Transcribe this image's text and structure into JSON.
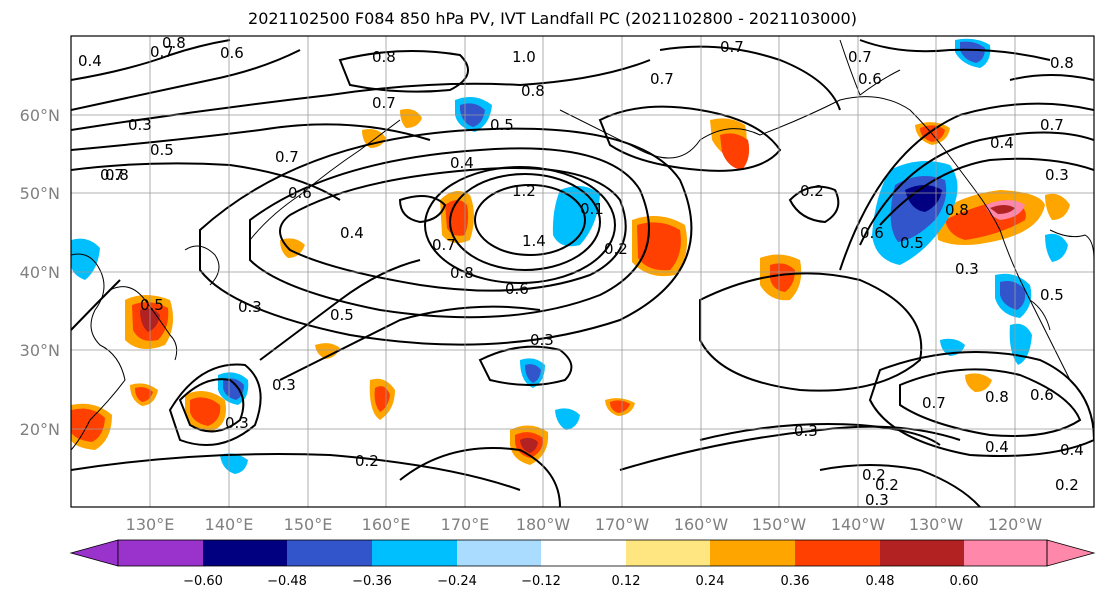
{
  "title": "2021102500 F084 850 hPa PV, IVT Landfall PC (2021102800 - 2021103000)",
  "lon_labels": [
    "130°E",
    "140°E",
    "150°E",
    "160°E",
    "170°E",
    "180°W",
    "170°W",
    "160°W",
    "150°W",
    "140°W",
    "130°W",
    "120°W"
  ],
  "lat_labels": [
    "60°N",
    "50°N",
    "40°N",
    "30°N",
    "20°N"
  ],
  "colorbar": {
    "ticks": [
      "−0.60",
      "−0.48",
      "−0.36",
      "−0.24",
      "−0.12",
      "0.12",
      "0.24",
      "0.36",
      "0.48",
      "0.60"
    ],
    "colors": [
      "#9933cc",
      "#000080",
      "#3355cc",
      "#00bfff",
      "#aadcff",
      "#ffffff",
      "#ffe680",
      "#ffa500",
      "#ff4000",
      "#b22222",
      "#ff88aa"
    ]
  },
  "contour_labels": [
    "0.4",
    "0.8",
    "0.7",
    "0.6",
    "0.8",
    "1.0",
    "0.8",
    "0.7",
    "0.7",
    "0.6",
    "0.8",
    "0.3",
    "0.5",
    "0.7",
    "0.7",
    "0.5",
    "0.4",
    "0.7",
    "0.6",
    "0.4",
    "1.2",
    "1.4",
    "0.1",
    "0.2",
    "0.2",
    "0.7",
    "0.8",
    "0.6",
    "0.5",
    "0.3",
    "0.3",
    "0.5",
    "0.3",
    "0.2",
    "0.3",
    "0.6",
    "0.5",
    "0.3",
    "0.4",
    "0.7",
    "0.3",
    "0.8",
    "0.5",
    "0.8",
    "0.6",
    "0.4",
    "0.7",
    "0.8",
    "0.3",
    "0.2",
    "0.3",
    "0.2",
    "0.2",
    "0.7",
    "0.4"
  ]
}
